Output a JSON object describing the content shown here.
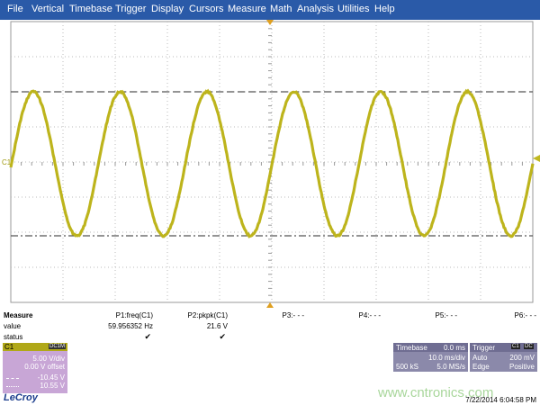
{
  "menu": [
    "File",
    "Vertical",
    "Timebase",
    "Trigger",
    "Display",
    "Cursors",
    "Measure",
    "Math",
    "Analysis",
    "Utilities",
    "Help"
  ],
  "screen": {
    "channel_marker": "C1"
  },
  "measure": {
    "label": "Measure",
    "row_labels": [
      "value",
      "status"
    ],
    "columns": [
      {
        "name": "P1:freq(C1)",
        "value": "59.956352 Hz",
        "status": "✔"
      },
      {
        "name": "P2:pkpk(C1)",
        "value": "21.6 V",
        "status": "✔"
      },
      {
        "name": "P3:- - -"
      },
      {
        "name": "P4:- - -"
      },
      {
        "name": "P5:- - -"
      },
      {
        "name": "P6:- - -"
      }
    ]
  },
  "channel": {
    "name": "C1",
    "coupling": "DC1M",
    "scale": "5.00 V/div",
    "offset": "0.00 V offset",
    "cursor_1": "-10.45 V",
    "cursor_2": "10.55 V"
  },
  "timebase": {
    "title": "Timebase",
    "delay": "0.0 ms",
    "per_div": "10.0 ms/div",
    "samples": "500 kS",
    "rate": "5.0 MS/s"
  },
  "trigger": {
    "title": "Trigger",
    "channel": "C1",
    "coupling": "DC",
    "mode": "Auto",
    "level": "200 mV",
    "type": "Edge",
    "slope": "Positive"
  },
  "footer": {
    "brand": "LeCroy",
    "timestamp": "7/22/2014 6:04:58 PM",
    "watermark": "www.cntronics.com"
  }
}
